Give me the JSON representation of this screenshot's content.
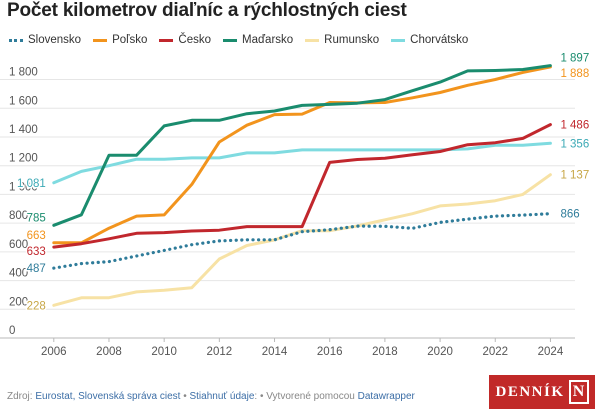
{
  "title": "Počet kilometrov diaľníc a rýchlostných ciest",
  "colors": {
    "Slovensko": "#2f7c9a",
    "Poľsko": "#f2941d",
    "Česko": "#c1272d",
    "Maďarsko": "#1a8c6e",
    "Rumunsko": "#f7e2a5",
    "Chorvátsko": "#7fdbe0",
    "gridline": "#e6e6e6",
    "axis_text": "#555555"
  },
  "footer": {
    "source_prefix": "Zdroj: ",
    "source_link": "Eurostat, Slovenská správa ciest",
    "sep1": " • ",
    "download_link": "Stiahnuť údaje",
    "download_suffix": ":",
    "sep2": " • ",
    "made_with": "Vytvorené pomocou ",
    "dw_link": "Datawrapper"
  },
  "logo": {
    "text": "DENNÍK",
    "letter": "N"
  },
  "chart_data": {
    "type": "line",
    "x": [
      2006,
      2007,
      2008,
      2009,
      2010,
      2011,
      2012,
      2013,
      2014,
      2015,
      2016,
      2017,
      2018,
      2019,
      2020,
      2021,
      2022,
      2023,
      2024
    ],
    "xlim": [
      2005.5,
      2024.6
    ],
    "xticks": [
      "2006",
      "2008",
      "2010",
      "2012",
      "2014",
      "2016",
      "2018",
      "2020",
      "2022",
      "2024"
    ],
    "ylim": [
      0,
      1950
    ],
    "yticks": [
      "0",
      "200",
      "400",
      "600",
      "800",
      "1 000",
      "1 200",
      "1 400",
      "1 600",
      "1 800"
    ],
    "yticks_values": [
      0,
      200,
      400,
      600,
      800,
      1000,
      1200,
      1400,
      1600,
      1800
    ],
    "series": [
      {
        "name": "Rumunsko",
        "style": "solid",
        "values": [
          228,
          280,
          281,
          321,
          332,
          350,
          550,
          644,
          683,
          747,
          747,
          780,
          823,
          866,
          920,
          933,
          956,
          1000,
          1137
        ],
        "start_label": "228",
        "end_label": "1 137"
      },
      {
        "name": "Chorvátsko",
        "style": "solid",
        "values": [
          1081,
          1160,
          1200,
          1245,
          1245,
          1254,
          1254,
          1289,
          1289,
          1310,
          1310,
          1310,
          1310,
          1310,
          1310,
          1317,
          1342,
          1342,
          1356
        ],
        "start_label": "1 081",
        "end_label": "1 356"
      },
      {
        "name": "Poľsko",
        "style": "solid",
        "values": [
          663,
          663,
          765,
          849,
          857,
          1070,
          1365,
          1482,
          1556,
          1559,
          1640,
          1637,
          1640,
          1673,
          1710,
          1760,
          1800,
          1850,
          1888
        ],
        "start_label": "663",
        "end_label": "1 888"
      },
      {
        "name": "Česko",
        "style": "solid",
        "values": [
          633,
          657,
          691,
          729,
          734,
          745,
          751,
          776,
          776,
          776,
          1223,
          1243,
          1252,
          1276,
          1299,
          1346,
          1360,
          1390,
          1486
        ],
        "start_label": "633",
        "end_label": "1 486"
      },
      {
        "name": "Maďarsko",
        "style": "solid",
        "values": [
          785,
          858,
          1273,
          1273,
          1477,
          1516,
          1516,
          1562,
          1581,
          1620,
          1627,
          1635,
          1660,
          1722,
          1782,
          1860,
          1863,
          1870,
          1897
        ],
        "start_label": "785",
        "end_label": "1 897"
      },
      {
        "name": "Slovensko",
        "style": "dotted",
        "values": [
          487,
          518,
          532,
          571,
          610,
          650,
          676,
          684,
          684,
          740,
          754,
          779,
          778,
          764,
          805,
          828,
          849,
          856,
          866
        ],
        "start_label": "487",
        "end_label": "866"
      }
    ],
    "legend_order": [
      "Slovensko",
      "Poľsko",
      "Česko",
      "Maďarsko",
      "Rumunsko",
      "Chorvátsko"
    ],
    "legend_position": "top",
    "grid": true
  }
}
